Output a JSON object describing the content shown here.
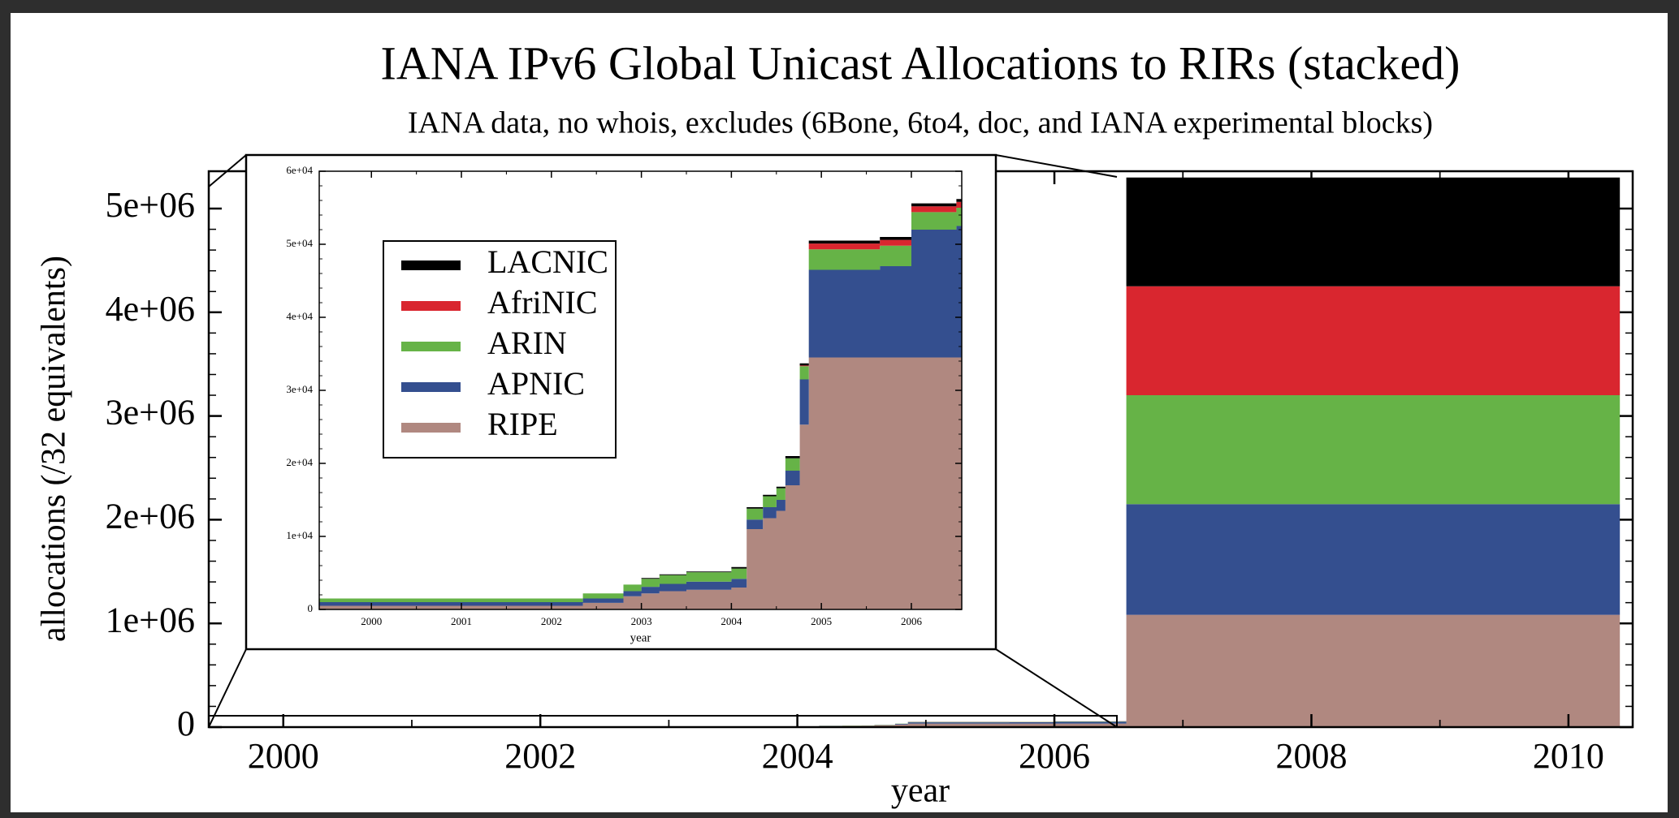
{
  "chart_data": [
    {
      "type": "stacked-step-area",
      "title": "IANA IPv6 Global Unicast Allocations to RIRs (stacked)",
      "subtitle": "IANA data, no whois, excludes (6Bone, 6to4, doc, and IANA experimental blocks)",
      "xlabel": "year",
      "ylabel": "allocations (/32 equivalents)",
      "x": [
        1999.42,
        2002.35,
        2002.8,
        2003.0,
        2003.2,
        2003.5,
        2004.0,
        2004.17,
        2004.35,
        2004.5,
        2004.6,
        2004.76,
        2004.86,
        2005.65,
        2006.0,
        2006.5,
        2006.56,
        2010.4
      ],
      "series": [
        {
          "name": "RIPE",
          "color": "#b08880",
          "values": [
            500,
            900,
            1800,
            2200,
            2500,
            2700,
            3000,
            11000,
            12500,
            13500,
            17000,
            25300,
            34500,
            34500,
            34500,
            34500,
            1083076,
            1083076
          ]
        },
        {
          "name": "APNIC",
          "color": "#344f8f",
          "values": [
            500,
            600,
            700,
            900,
            1000,
            1100,
            1200,
            1300,
            1500,
            1500,
            2000,
            6200,
            12000,
            12500,
            17500,
            18000,
            1066576,
            1066576
          ]
        },
        {
          "name": "ARIN",
          "color": "#66b347",
          "values": [
            500,
            700,
            900,
            1100,
            1200,
            1300,
            1400,
            1500,
            1500,
            1600,
            1700,
            1800,
            2800,
            2800,
            2400,
            2500,
            1051076,
            1051076
          ]
        },
        {
          "name": "AfriNIC",
          "color": "#d9262f",
          "values": [
            0,
            0,
            0,
            0,
            0,
            0,
            0,
            0,
            0,
            0,
            0,
            100,
            800,
            800,
            800,
            800,
            1049376,
            1049376
          ]
        },
        {
          "name": "LACNIC",
          "color": "#000000",
          "values": [
            0,
            0,
            0,
            100,
            100,
            100,
            200,
            200,
            200,
            200,
            300,
            300,
            400,
            400,
            400,
            400,
            1048976,
            1048976
          ]
        }
      ],
      "xlim": [
        1999.42,
        2010.5
      ],
      "ylim": [
        0,
        5360000
      ],
      "xticks": [
        2000,
        2002,
        2004,
        2006,
        2008,
        2010
      ],
      "yticks": [
        0,
        {
          "value": 1000000,
          "label": "1e+06"
        },
        {
          "value": 2000000,
          "label": "2e+06"
        },
        {
          "value": 3000000,
          "label": "3e+06"
        },
        {
          "value": 4000000,
          "label": "4e+06"
        },
        {
          "value": 5000000,
          "label": "5e+06"
        }
      ]
    },
    {
      "type": "stacked-step-area",
      "xlabel": "year",
      "x": [
        1999.42,
        2002.35,
        2002.8,
        2003.0,
        2003.2,
        2003.5,
        2004.0,
        2004.17,
        2004.35,
        2004.5,
        2004.6,
        2004.76,
        2004.86,
        2005.65,
        2006.0,
        2006.5,
        2006.56
      ],
      "series": [
        {
          "name": "RIPE",
          "color": "#b08880",
          "values": [
            500,
            900,
            1800,
            2200,
            2500,
            2700,
            3000,
            11000,
            12500,
            13500,
            17000,
            25300,
            34500,
            34500,
            34500,
            34500,
            34500
          ]
        },
        {
          "name": "APNIC",
          "color": "#344f8f",
          "values": [
            500,
            600,
            700,
            900,
            1000,
            1100,
            1200,
            1300,
            1500,
            1500,
            2000,
            6200,
            12000,
            12500,
            17500,
            18000,
            18000
          ]
        },
        {
          "name": "ARIN",
          "color": "#66b347",
          "values": [
            500,
            700,
            900,
            1100,
            1200,
            1300,
            1400,
            1500,
            1500,
            1600,
            1700,
            1800,
            2800,
            2800,
            2400,
            2500,
            2500
          ]
        },
        {
          "name": "AfriNIC",
          "color": "#d9262f",
          "values": [
            0,
            0,
            0,
            0,
            0,
            0,
            0,
            0,
            0,
            0,
            0,
            100,
            800,
            800,
            800,
            800,
            800
          ]
        },
        {
          "name": "LACNIC",
          "color": "#000000",
          "values": [
            0,
            0,
            0,
            100,
            100,
            100,
            200,
            200,
            200,
            200,
            300,
            300,
            400,
            400,
            400,
            400,
            400
          ]
        }
      ],
      "xlim": [
        1999.42,
        2006.56
      ],
      "ylim": [
        0,
        60000
      ],
      "xticks": [
        2000,
        2001,
        2002,
        2003,
        2004,
        2005,
        2006
      ],
      "yticks": [
        0,
        {
          "value": 10000,
          "label": "1e+04"
        },
        {
          "value": 20000,
          "label": "2e+04"
        },
        {
          "value": 30000,
          "label": "3e+04"
        },
        {
          "value": 40000,
          "label": "4e+04"
        },
        {
          "value": 50000,
          "label": "5e+04"
        },
        {
          "value": 60000,
          "label": "6e+04"
        }
      ],
      "legend": "upper left"
    }
  ]
}
